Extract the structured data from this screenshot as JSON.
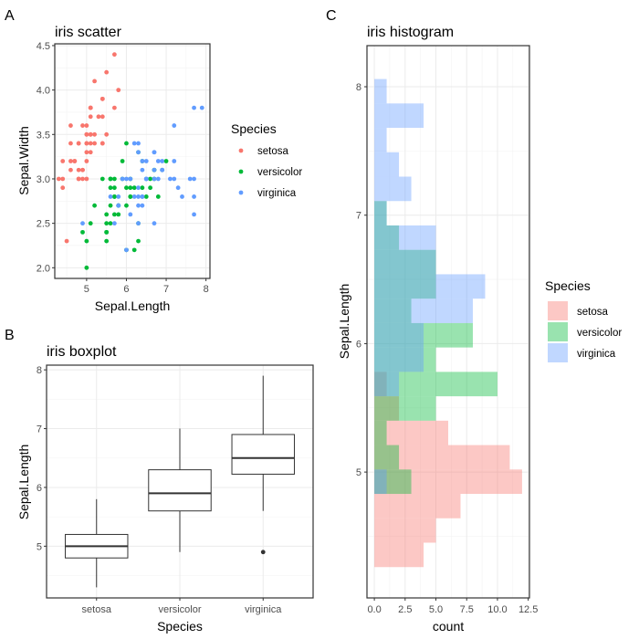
{
  "panels": {
    "A": {
      "tag": "A"
    },
    "B": {
      "tag": "B"
    },
    "C": {
      "tag": "C"
    }
  },
  "species_colors": {
    "setosa": "#F8766D",
    "versicolor": "#00BA38",
    "virginica": "#619CFF"
  },
  "chart_data": [
    {
      "id": "scatter",
      "type": "scatter",
      "title": "iris scatter",
      "xlabel": "Sepal.Length",
      "ylabel": "Sepal.Width",
      "xlim": [
        4.2,
        8.1
      ],
      "ylim": [
        1.88,
        4.52
      ],
      "xticks": [
        5,
        6,
        7,
        8
      ],
      "xtick_labels": [
        "5",
        "6",
        "7",
        "8"
      ],
      "yticks": [
        2.0,
        2.5,
        3.0,
        3.5,
        4.0,
        4.5
      ],
      "ytick_labels": [
        "2.0",
        "2.5",
        "3.0",
        "3.5",
        "4.0",
        "4.5"
      ],
      "grid": true,
      "legend": {
        "title": "Species",
        "position": "right",
        "entries": [
          "setosa",
          "versicolor",
          "virginica"
        ]
      },
      "series": [
        {
          "name": "setosa",
          "x": [
            5.1,
            4.9,
            4.7,
            4.6,
            5.0,
            5.4,
            4.6,
            5.0,
            4.4,
            4.9,
            5.4,
            4.8,
            4.8,
            4.3,
            5.8,
            5.7,
            5.4,
            5.1,
            5.7,
            5.1,
            5.4,
            5.1,
            4.6,
            5.1,
            4.8,
            5.0,
            5.0,
            5.2,
            5.2,
            4.7,
            4.8,
            5.4,
            5.2,
            5.5,
            4.9,
            5.0,
            5.5,
            4.9,
            4.4,
            5.1,
            5.0,
            4.5,
            4.4,
            5.0,
            5.1,
            4.8,
            5.1,
            4.6,
            5.3,
            5.0
          ],
          "y": [
            3.5,
            3.0,
            3.2,
            3.1,
            3.6,
            3.9,
            3.4,
            3.4,
            2.9,
            3.1,
            3.7,
            3.4,
            3.0,
            3.0,
            4.0,
            4.4,
            3.9,
            3.5,
            3.8,
            3.8,
            3.4,
            3.7,
            3.6,
            3.3,
            3.4,
            3.0,
            3.4,
            3.5,
            3.4,
            3.2,
            3.1,
            3.4,
            4.1,
            4.2,
            3.1,
            3.2,
            3.5,
            3.6,
            3.0,
            3.4,
            3.5,
            2.3,
            3.2,
            3.5,
            3.8,
            3.0,
            3.8,
            3.2,
            3.7,
            3.3
          ]
        },
        {
          "name": "versicolor",
          "x": [
            7.0,
            6.4,
            6.9,
            5.5,
            6.5,
            5.7,
            6.3,
            4.9,
            6.6,
            5.2,
            5.0,
            5.9,
            6.0,
            6.1,
            5.6,
            6.7,
            5.6,
            5.8,
            6.2,
            5.6,
            5.9,
            6.1,
            6.3,
            6.1,
            6.4,
            6.6,
            6.8,
            6.7,
            6.0,
            5.7,
            5.5,
            5.5,
            5.8,
            6.0,
            5.4,
            6.0,
            6.7,
            6.3,
            5.6,
            5.5,
            5.5,
            6.1,
            5.8,
            5.0,
            5.6,
            5.7,
            5.7,
            6.2,
            5.1,
            5.7
          ],
          "y": [
            3.2,
            3.2,
            3.1,
            2.3,
            2.8,
            2.8,
            3.3,
            2.4,
            2.9,
            2.7,
            2.0,
            3.0,
            2.2,
            2.9,
            2.9,
            3.1,
            3.0,
            2.7,
            2.2,
            2.5,
            3.2,
            2.8,
            2.5,
            2.8,
            2.9,
            3.0,
            2.8,
            3.0,
            2.9,
            2.6,
            2.4,
            2.4,
            2.7,
            2.7,
            3.0,
            3.4,
            3.1,
            2.3,
            3.0,
            2.5,
            2.6,
            3.0,
            2.6,
            2.3,
            2.7,
            3.0,
            2.9,
            2.9,
            2.5,
            2.8
          ]
        },
        {
          "name": "virginica",
          "x": [
            6.3,
            5.8,
            7.1,
            6.3,
            6.5,
            7.6,
            4.9,
            7.3,
            6.7,
            7.2,
            6.5,
            6.4,
            6.8,
            5.7,
            5.8,
            6.4,
            6.5,
            7.7,
            7.7,
            6.0,
            6.9,
            5.6,
            7.7,
            6.3,
            6.7,
            7.2,
            6.2,
            6.1,
            6.4,
            7.2,
            7.4,
            7.9,
            6.4,
            6.3,
            6.1,
            7.7,
            6.3,
            6.4,
            6.0,
            6.9,
            6.7,
            6.9,
            5.8,
            6.8,
            6.7,
            6.7,
            6.3,
            6.5,
            6.2,
            5.9
          ],
          "y": [
            3.3,
            2.7,
            3.0,
            2.9,
            3.0,
            3.0,
            2.5,
            2.9,
            2.5,
            3.6,
            3.2,
            2.7,
            3.0,
            2.5,
            2.8,
            3.2,
            3.0,
            3.8,
            2.6,
            2.2,
            3.2,
            2.8,
            2.8,
            2.7,
            3.3,
            3.2,
            2.8,
            3.0,
            2.8,
            3.0,
            2.8,
            3.8,
            2.8,
            2.8,
            2.6,
            3.0,
            3.4,
            3.1,
            3.0,
            3.1,
            3.1,
            3.1,
            2.7,
            3.2,
            3.3,
            3.0,
            2.5,
            3.0,
            3.4,
            3.0
          ]
        }
      ]
    },
    {
      "id": "boxplot",
      "type": "box",
      "title": "iris boxplot",
      "xlabel": "Species",
      "ylabel": "Sepal.Length",
      "categories": [
        "setosa",
        "versicolor",
        "virginica"
      ],
      "ylim": [
        4.12,
        8.08
      ],
      "yticks": [
        5,
        6,
        7,
        8
      ],
      "ytick_labels": [
        "5",
        "6",
        "7",
        "8"
      ],
      "grid": true,
      "boxes": [
        {
          "name": "setosa",
          "min": 4.3,
          "q1": 4.8,
          "median": 5.0,
          "q3": 5.2,
          "max": 5.8,
          "outliers": []
        },
        {
          "name": "versicolor",
          "min": 4.9,
          "q1": 5.6,
          "median": 5.9,
          "q3": 6.3,
          "max": 7.0,
          "outliers": []
        },
        {
          "name": "virginica",
          "min": 5.6,
          "q1": 6.225,
          "median": 6.5,
          "q3": 6.9,
          "max": 7.9,
          "outliers": [
            4.9
          ]
        }
      ]
    },
    {
      "id": "histogram",
      "type": "histogram",
      "orientation": "horizontal",
      "title": "iris histogram",
      "xlabel": "count",
      "ylabel": "Sepal.Length",
      "xlim": [
        -0.6,
        12.6
      ],
      "ylim": [
        4.02,
        8.32
      ],
      "xticks": [
        0,
        2.5,
        5,
        7.5,
        10,
        12.5
      ],
      "xtick_labels": [
        "0.0",
        "2.5",
        "5.0",
        "7.5",
        "10.0",
        "12.5"
      ],
      "yticks": [
        5,
        6,
        7,
        8
      ],
      "ytick_labels": [
        "5",
        "6",
        "7",
        "8"
      ],
      "grid": true,
      "alpha": 0.4,
      "legend": {
        "title": "Species",
        "position": "right",
        "entries": [
          "setosa",
          "versicolor",
          "virginica"
        ]
      },
      "bin_edges": [
        4.26,
        4.45,
        4.64,
        4.83,
        5.02,
        5.21,
        5.4,
        5.59,
        5.78,
        5.97,
        6.16,
        6.35,
        6.54,
        6.73,
        6.92,
        7.11,
        7.3,
        7.49,
        7.68,
        7.87,
        8.06
      ],
      "series": [
        {
          "name": "setosa",
          "counts": [
            4,
            5,
            7,
            12,
            11,
            6,
            2,
            1,
            0,
            0,
            0,
            0,
            0,
            0,
            0,
            0,
            0,
            0,
            0,
            0
          ]
        },
        {
          "name": "versicolor",
          "counts": [
            0,
            0,
            0,
            3,
            2,
            1,
            5,
            10,
            5,
            8,
            3,
            5,
            5,
            2,
            1,
            0,
            0,
            0,
            0,
            0
          ]
        },
        {
          "name": "virginica",
          "counts": [
            0,
            0,
            0,
            1,
            0,
            0,
            0,
            2,
            4,
            4,
            8,
            9,
            5,
            5,
            1,
            3,
            2,
            1,
            4,
            1
          ]
        }
      ]
    }
  ]
}
